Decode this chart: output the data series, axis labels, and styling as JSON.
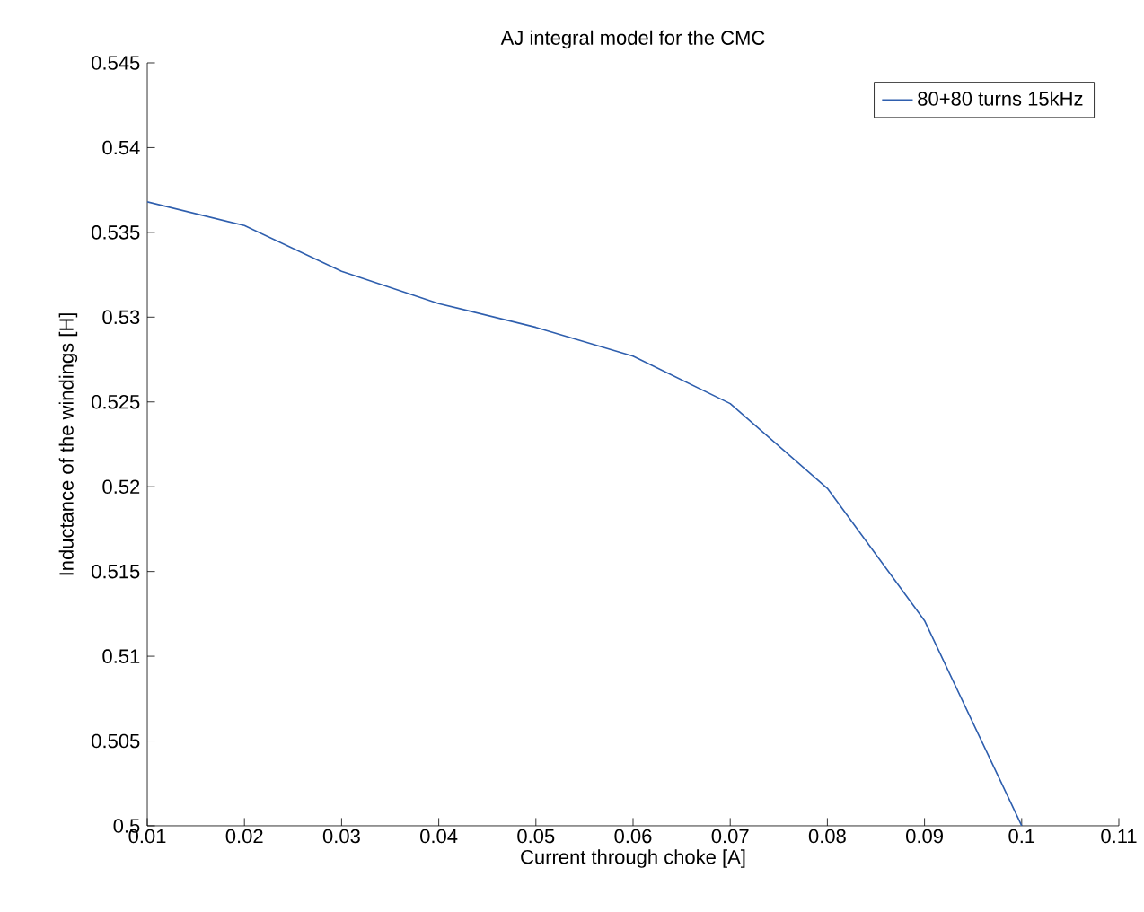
{
  "chart_data": {
    "type": "line",
    "title": "AJ integral model for the CMC",
    "xlabel": "Current through choke [A]",
    "ylabel": "Inductance of the windings [H]",
    "x": [
      0.01,
      0.02,
      0.03,
      0.04,
      0.05,
      0.06,
      0.07,
      0.08,
      0.09,
      0.1
    ],
    "series": [
      {
        "name": "80+80 turns 15kHz",
        "color": "#2f5fae",
        "values": [
          0.5368,
          0.5354,
          0.5327,
          0.5308,
          0.5294,
          0.5277,
          0.5249,
          0.5199,
          0.5121,
          0.5
        ]
      }
    ],
    "xlim": [
      0.01,
      0.11
    ],
    "xticks": [
      0.01,
      0.02,
      0.03,
      0.04,
      0.05,
      0.06,
      0.07,
      0.08,
      0.09,
      0.1,
      0.11
    ],
    "ylim": [
      0.5,
      0.545
    ],
    "yticks": [
      0.5,
      0.505,
      0.51,
      0.515,
      0.52,
      0.525,
      0.53,
      0.535,
      0.54,
      0.545
    ],
    "legend": "top right"
  }
}
